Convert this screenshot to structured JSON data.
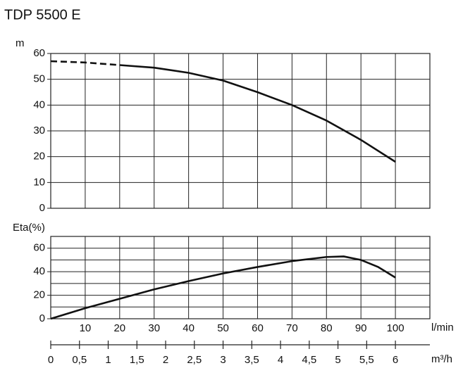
{
  "chart_data": [
    {
      "type": "line",
      "title": "TDP 5500 E",
      "ylabel": "m",
      "xlim": [
        0,
        110
      ],
      "ylim": [
        0,
        60
      ],
      "yticks": [
        0,
        10,
        20,
        30,
        40,
        50,
        60
      ],
      "grid": true,
      "series": [
        {
          "color": "#111111",
          "dashed": true,
          "x": [
            0,
            10,
            20
          ],
          "values": [
            57,
            56.5,
            55.5
          ]
        },
        {
          "color": "#111111",
          "dashed": false,
          "x": [
            20,
            30,
            40,
            50,
            60,
            70,
            80,
            90,
            100
          ],
          "values": [
            55.5,
            54.5,
            52.5,
            49.5,
            45,
            40,
            34,
            26.5,
            18
          ]
        }
      ]
    },
    {
      "type": "line",
      "ylabel": "Eta(%)",
      "xlabel": "l/min",
      "xlim": [
        0,
        110
      ],
      "xticks": [
        10,
        20,
        30,
        40,
        50,
        60,
        70,
        80,
        90,
        100
      ],
      "ylim": [
        0,
        70
      ],
      "yticks": [
        0,
        20,
        40,
        60
      ],
      "ygrid": [
        10,
        30,
        50,
        70
      ],
      "grid": true,
      "series": [
        {
          "color": "#111111",
          "dashed": false,
          "x": [
            0,
            10,
            20,
            30,
            40,
            50,
            60,
            70,
            80,
            85,
            90,
            95,
            100
          ],
          "values": [
            0,
            9,
            17,
            25,
            32,
            38.5,
            44,
            49,
            52.5,
            53,
            50,
            44,
            35
          ]
        }
      ],
      "x2label": "m³/h",
      "x2lim": [
        0,
        6.6
      ],
      "x2ticks": [
        0,
        {
          "value": 0.5,
          "label": "0,5"
        },
        1,
        {
          "value": 1.5,
          "label": "1,5"
        },
        2,
        {
          "value": 2.5,
          "label": "2,5"
        },
        3,
        {
          "value": 3.5,
          "label": "3,5"
        },
        4,
        {
          "value": 4.5,
          "label": "4,5"
        },
        5,
        {
          "value": 5.5,
          "label": "5,5"
        },
        6
      ]
    }
  ]
}
